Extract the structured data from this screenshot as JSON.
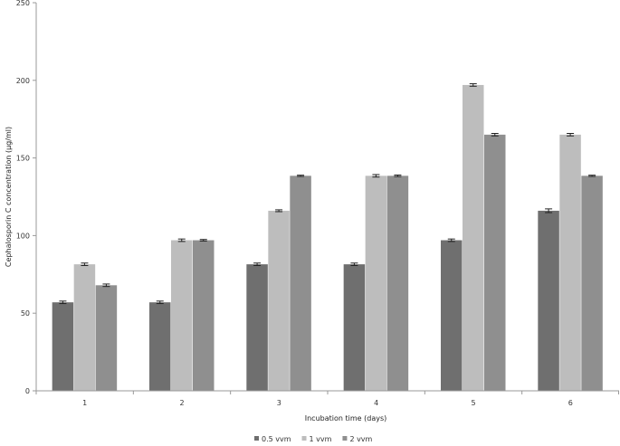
{
  "chart_data": {
    "type": "bar",
    "categories": [
      "1",
      "2",
      "3",
      "4",
      "5",
      "6"
    ],
    "series": [
      {
        "name": "0.5 vvm",
        "color": "#6f6f6f",
        "values": [
          57,
          57,
          81.5,
          81.5,
          97,
          116
        ],
        "errors": [
          0.8,
          0.8,
          0.8,
          0.8,
          0.8,
          1.2
        ]
      },
      {
        "name": "1 vvm",
        "color": "#bdbdbd",
        "values": [
          81.5,
          97,
          116,
          138.5,
          197,
          165
        ],
        "errors": [
          0.8,
          0.8,
          0.6,
          0.8,
          0.8,
          0.8
        ]
      },
      {
        "name": "2 vvm",
        "color": "#8f8f8f",
        "values": [
          68,
          97,
          138.5,
          138.5,
          165,
          138.5
        ],
        "errors": [
          0.8,
          0.5,
          0.4,
          0.5,
          0.8,
          0.4
        ]
      }
    ],
    "yticks": [
      "0",
      "50",
      "100",
      "150",
      "200",
      "250"
    ],
    "ylim": [
      0,
      250
    ],
    "xlabel": "Incubation  time  (days)",
    "ylabel": "Cephalosporin  C  concentration  (µg/ml)",
    "legend_position": "bottom-center",
    "grid": false
  }
}
